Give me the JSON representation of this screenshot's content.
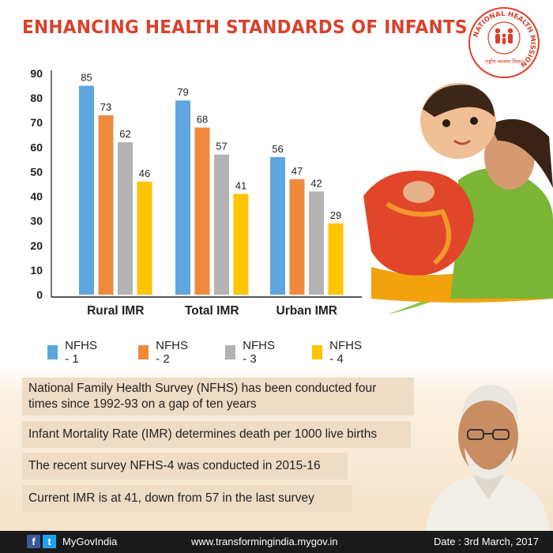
{
  "header": {
    "title": "ENHANCING HEALTH STANDARDS OF INFANTS"
  },
  "logo": {
    "ring_text": "NATIONAL HEALTH MISSION",
    "subtext": "राष्ट्रीय स्वास्थ्य मिशन"
  },
  "chart_data": {
    "type": "bar",
    "categories": [
      "Rural IMR",
      "Total IMR",
      "Urban IMR"
    ],
    "series": [
      {
        "name": "NFHS - 1",
        "color": "#5ea6dd",
        "values": [
          85,
          79,
          56
        ]
      },
      {
        "name": "NFHS - 2",
        "color": "#ef8a3c",
        "values": [
          73,
          68,
          47
        ]
      },
      {
        "name": "NFHS - 3",
        "color": "#b3b3b3",
        "values": [
          62,
          57,
          42
        ]
      },
      {
        "name": "NFHS - 4",
        "color": "#fdc400",
        "values": [
          46,
          41,
          29
        ]
      }
    ],
    "ylim": [
      0,
      90
    ],
    "yticks": [
      "0",
      "10",
      "20",
      "30",
      "40",
      "50",
      "60",
      "70",
      "80",
      "90"
    ],
    "grid": false,
    "legend": "bottom"
  },
  "facts": [
    "National Family Health Survey (NFHS) has been conducted four times since 1992-93 on a gap of ten years",
    "Infant Mortality Rate (IMR) determines death per 1000 live births",
    "The recent survey NFHS-4 was conducted in 2015-16",
    "Current IMR is at 41, down from 57 in the last survey"
  ],
  "footer": {
    "facebook_icon": "f",
    "twitter_icon": "t",
    "handle": "MyGovIndia",
    "url": "www.transformingindia.mygov.in",
    "date": "Date : 3rd March, 2017"
  }
}
